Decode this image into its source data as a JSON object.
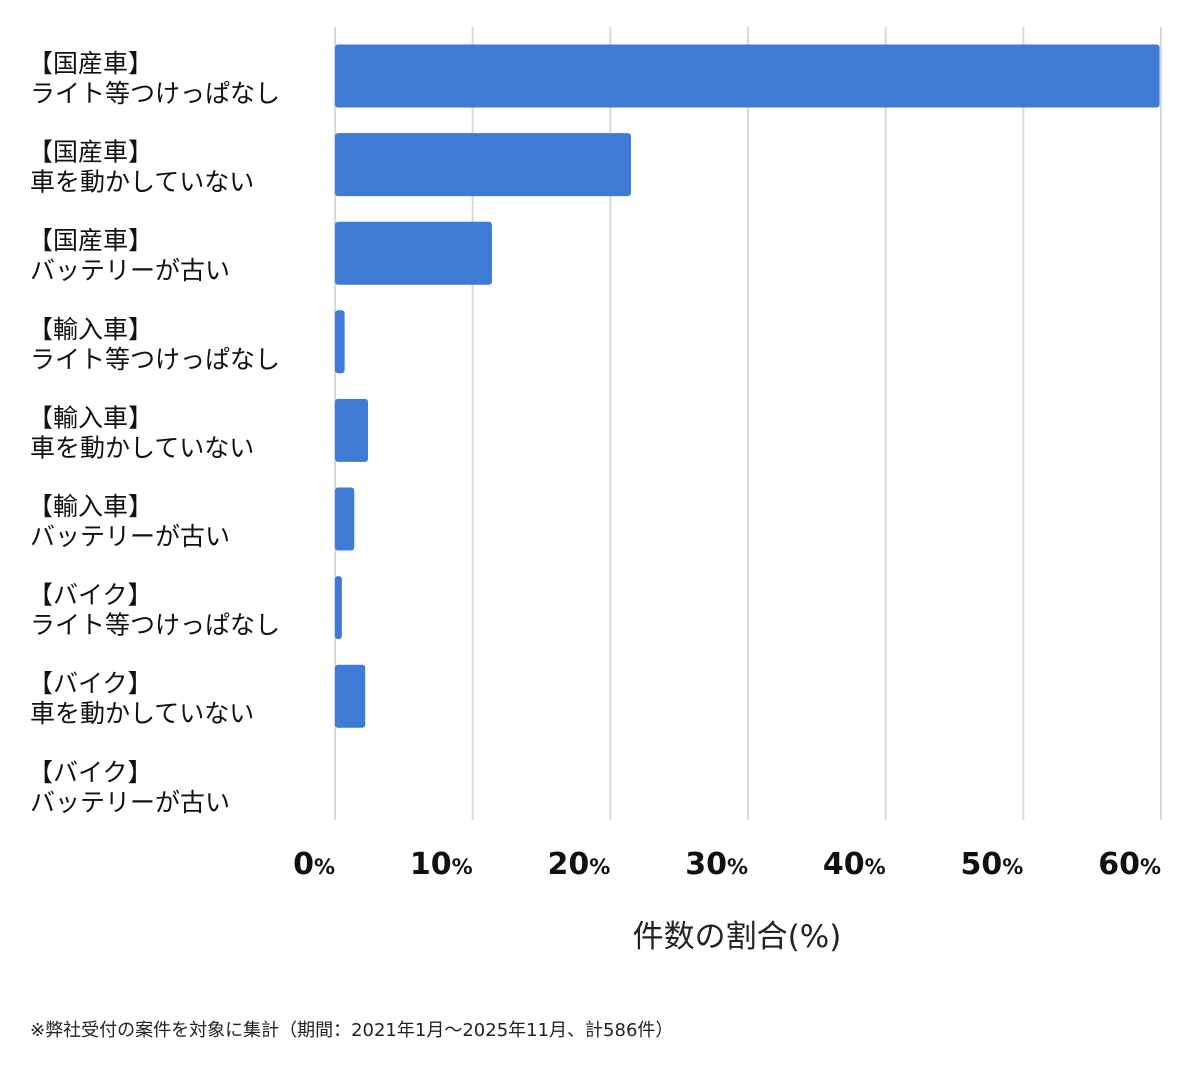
{
  "chart_data": {
    "type": "bar",
    "orientation": "horizontal",
    "categories": [
      [
        "【国産車】",
        "ライト等つけっぱなし"
      ],
      [
        "【国産車】",
        "車を動かしていない"
      ],
      [
        "【国産車】",
        "バッテリーが古い"
      ],
      [
        "【輸入車】",
        "ライト等つけっぱなし"
      ],
      [
        "【輸入車】",
        "車を動かしていない"
      ],
      [
        "【輸入車】",
        "バッテリーが古い"
      ],
      [
        "【バイク】",
        "ライト等つけっぱなし"
      ],
      [
        "【バイク】",
        "車を動かしていない"
      ],
      [
        "【バイク】",
        "バッテリーが古い"
      ]
    ],
    "values": [
      59.9,
      21.5,
      11.4,
      0.7,
      2.4,
      1.4,
      0.5,
      2.2,
      0
    ],
    "xlabel": "件数の割合(%)",
    "ylabel": "",
    "xlim": [
      0,
      60
    ],
    "ticks": [
      0,
      10,
      20,
      30,
      40,
      50,
      60
    ],
    "tick_suffix": "%",
    "grid": true,
    "bar_color": "#3f7ad6"
  },
  "footnote": "※弊社受付の案件を対象に集計（期間：2021年1月～2025年11月、計586件）"
}
